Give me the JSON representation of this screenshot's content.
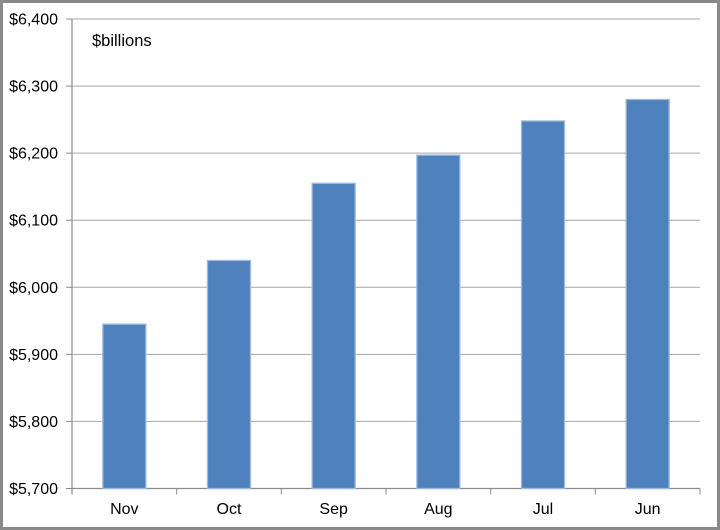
{
  "chart_data": {
    "type": "bar",
    "title": "",
    "ylabel": "$billions",
    "xlabel": "",
    "categories": [
      "Nov",
      "Oct",
      "Sep",
      "Aug",
      "Jul",
      "Jun"
    ],
    "values": [
      5945,
      6040,
      6155,
      6197,
      6248,
      6280
    ],
    "ylim": [
      5700,
      6400
    ],
    "ytick_step": 100,
    "ytick_labels": [
      "$5,700",
      "$5,800",
      "$5,900",
      "$6,000",
      "$6,100",
      "$6,200",
      "$6,300",
      "$6,400"
    ],
    "grid": "horizontal-only",
    "legend": "none",
    "colors": {
      "bar_fill": "#4F81BD",
      "bar_border": "#9DB9DC",
      "gridline": "#A6A6A6",
      "axis": "#8C8C8C",
      "frame_border": "#898989",
      "text": "#000000",
      "background": "#FFFFFF"
    }
  }
}
